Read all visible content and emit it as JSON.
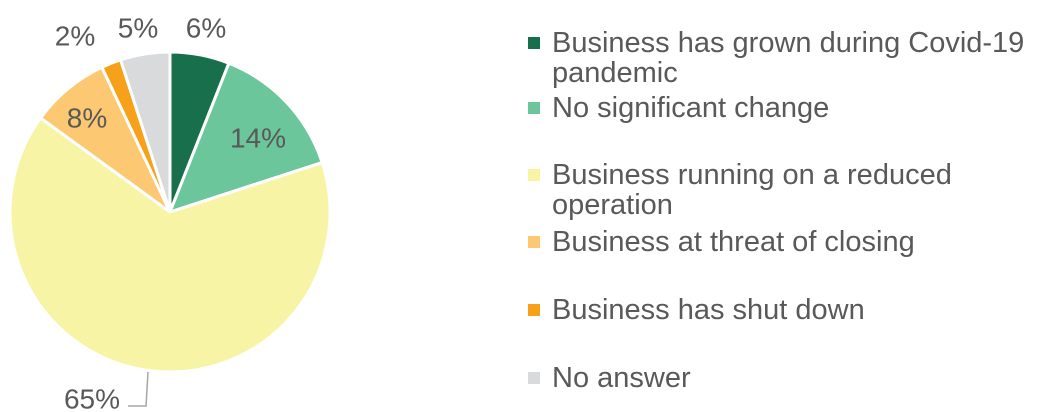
{
  "chart_data": {
    "type": "pie",
    "categories": [
      "Business has grown during Covid-19 pandemic",
      "No significant change",
      "Business running on a reduced operation",
      "Business at threat of closing",
      "Business has shut down",
      "No answer"
    ],
    "values": [
      6,
      14,
      65,
      8,
      2,
      5
    ],
    "value_labels": [
      "6%",
      "14%",
      "65%",
      "8%",
      "2%",
      "5%"
    ],
    "colors": [
      "#17704b",
      "#6cc69c",
      "#f8f4a6",
      "#fdc872",
      "#f7a11a",
      "#d9dadc"
    ],
    "legend": "right"
  }
}
